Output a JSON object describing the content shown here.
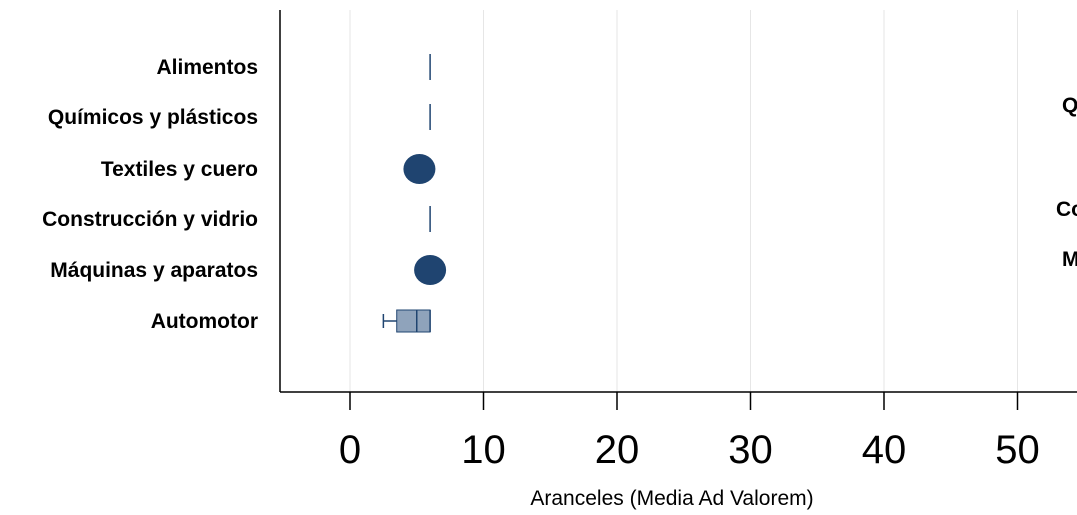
{
  "chart_data": {
    "type": "boxplot",
    "orientation": "horizontal",
    "categories": [
      "Alimentos",
      "Químicos y plásticos",
      "Textiles y cuero",
      "Construcción y vidrio",
      "Máquinas y aparatos",
      "Automotor"
    ],
    "xlabel": "Aranceles (Media Ad Valorem)",
    "xticks": [
      0,
      10,
      20,
      30,
      40,
      50
    ],
    "xlim": [
      -5,
      55
    ],
    "grid": "vertical",
    "colors": {
      "box": "#8fa3bb",
      "line": "#1f4470",
      "dot": "#1f4470",
      "grid": "#e6e6e6"
    },
    "series": [
      {
        "category": "Alimentos",
        "kind": "line",
        "value": 6
      },
      {
        "category": "Químicos y plásticos",
        "kind": "line",
        "value": 6
      },
      {
        "category": "Textiles y cuero",
        "kind": "dot",
        "value": 5.2
      },
      {
        "category": "Construcción y vidrio",
        "kind": "line",
        "value": 6
      },
      {
        "category": "Máquinas y aparatos",
        "kind": "dot",
        "value": 6
      },
      {
        "category": "Automotor",
        "kind": "box",
        "min": 2.5,
        "q1": 3.5,
        "median": 5,
        "q3": 6,
        "max": 6
      }
    ],
    "cut_labels": [
      "Q",
      "Co",
      "M"
    ]
  }
}
